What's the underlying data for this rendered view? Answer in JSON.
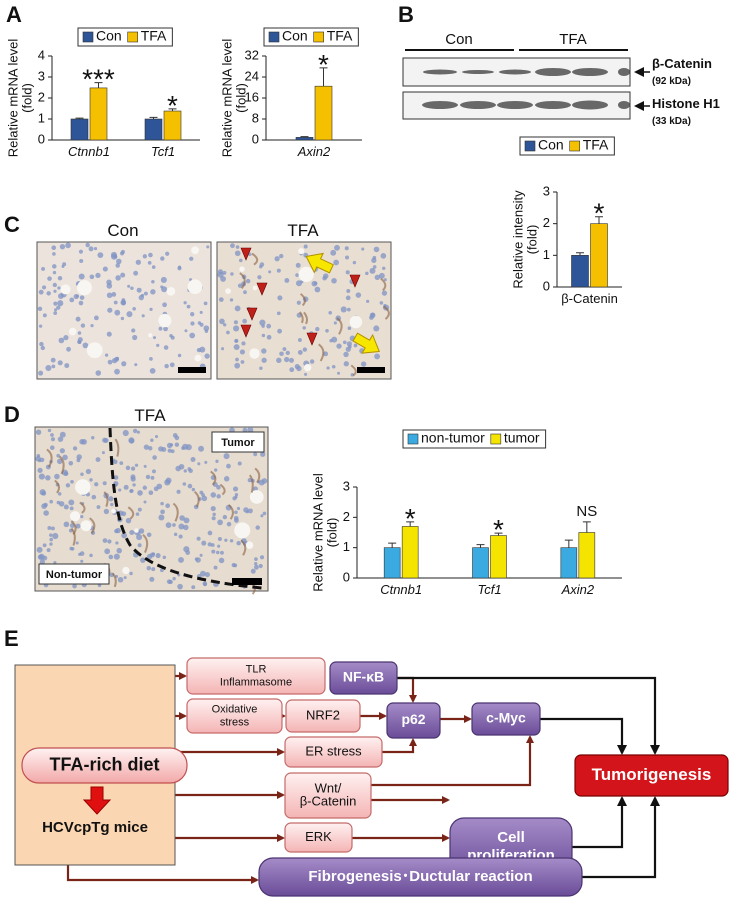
{
  "panel_labels": [
    "A",
    "B",
    "C",
    "D",
    "E"
  ],
  "chart_data": [
    {
      "type": "bar",
      "ylabel": [
        "Relative mRNA level",
        "(fold)"
      ],
      "categories": [
        "Ctnnb1",
        "Tcf1"
      ],
      "series": [
        {
          "name": "Con",
          "color": "#2e5597",
          "values": [
            1.0,
            1.0
          ],
          "errors": [
            0.04,
            0.08
          ]
        },
        {
          "name": "TFA",
          "color": "#f5c000",
          "values": [
            2.48,
            1.38
          ],
          "errors": [
            0.25,
            0.1
          ]
        }
      ],
      "annotations": [
        "***",
        "*"
      ],
      "ylim": [
        0,
        4
      ],
      "yticks": [
        0,
        1,
        2,
        3,
        4
      ]
    },
    {
      "type": "bar",
      "ylabel": [
        "Relative mRNA level",
        "(fold)"
      ],
      "categories": [
        "Axin2"
      ],
      "series": [
        {
          "name": "Con",
          "color": "#2e5597",
          "values": [
            1.0
          ],
          "errors": [
            0.3
          ]
        },
        {
          "name": "TFA",
          "color": "#f5c000",
          "values": [
            20.5
          ],
          "errors": [
            7.0
          ]
        }
      ],
      "annotations": [
        "*"
      ],
      "ylim": [
        0,
        32
      ],
      "yticks": [
        0,
        8,
        16,
        24,
        32
      ]
    },
    {
      "type": "bar",
      "ylabel": [
        "Relative  intensity",
        "(fold)"
      ],
      "categories": [
        "β-Catenin"
      ],
      "series": [
        {
          "name": "Con",
          "color": "#2e5597",
          "values": [
            1.0
          ],
          "errors": [
            0.08
          ]
        },
        {
          "name": "TFA",
          "color": "#f5c000",
          "values": [
            2.0
          ],
          "errors": [
            0.22
          ]
        }
      ],
      "annotations": [
        "*"
      ],
      "ylim": [
        0,
        3
      ],
      "yticks": [
        0,
        1,
        2,
        3
      ]
    },
    {
      "type": "bar",
      "ylabel": [
        "Relative mRNA level",
        "(fold)"
      ],
      "categories": [
        "Ctnnb1",
        "Tcf1",
        "Axin2"
      ],
      "series": [
        {
          "name": "non-tumor",
          "color": "#3aaae0",
          "values": [
            1.0,
            1.0,
            1.0
          ],
          "errors": [
            0.15,
            0.1,
            0.25
          ]
        },
        {
          "name": "tumor",
          "color": "#f5e400",
          "values": [
            1.7,
            1.4,
            1.5
          ],
          "errors": [
            0.15,
            0.08,
            0.35
          ]
        }
      ],
      "annotations": [
        "*",
        "*",
        "NS"
      ],
      "ylim": [
        0,
        3
      ],
      "yticks": [
        0,
        1,
        2,
        3
      ]
    }
  ],
  "blot": {
    "groups": [
      "Con",
      "TFA"
    ],
    "rows": [
      {
        "name": "β-Catenin",
        "size": "(92 kDa)"
      },
      {
        "name": "Histone H1",
        "size": "(33 kDa)"
      }
    ]
  },
  "histology_c": {
    "titles": [
      "Con",
      "TFA"
    ]
  },
  "histology_d": {
    "title": "TFA",
    "regions": [
      "Tumor",
      "Non-tumor"
    ]
  },
  "diagram": {
    "nodes": [
      {
        "lines": [
          "TFA-rich diet"
        ]
      },
      {
        "lines": [
          "HCVcpTg mice"
        ]
      },
      {
        "lines": [
          "TLR",
          "Inflammasome"
        ]
      },
      {
        "lines": [
          "NF-κB"
        ]
      },
      {
        "lines": [
          "Oxidative",
          "stress"
        ]
      },
      {
        "lines": [
          "NRF2"
        ]
      },
      {
        "lines": [
          "p62"
        ]
      },
      {
        "lines": [
          "c-Myc"
        ]
      },
      {
        "lines": [
          "ER stress"
        ]
      },
      {
        "lines": [
          "Wnt/",
          "β-Catenin"
        ]
      },
      {
        "lines": [
          "ERK"
        ]
      },
      {
        "lines": [
          "Cell",
          "proliferation"
        ]
      },
      {
        "lines": [
          "Fibrogenesis･Ductular reaction"
        ]
      },
      {
        "lines": [
          "Tumorigenesis"
        ]
      }
    ]
  }
}
